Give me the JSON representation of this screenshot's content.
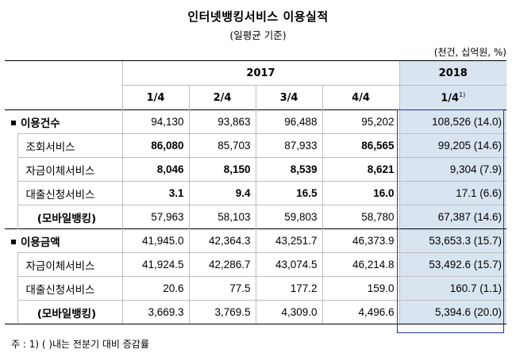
{
  "title": "인터넷뱅킹서비스  이용실적",
  "subtitle": "(일평균  기준)",
  "unit": "(천건, 십억원, %)",
  "header": {
    "year_2017": "2017",
    "year_2018": "2018",
    "quarters": [
      "1/4",
      "2/4",
      "3/4",
      "4/4",
      "1/4"
    ],
    "footnote_mark": "1)"
  },
  "rows": [
    {
      "label": "이용건수",
      "type": "cat",
      "values": [
        "94,130",
        "93,863",
        "96,488",
        "95,202",
        "108,526 (14.0)"
      ]
    },
    {
      "label": "조회서비스",
      "type": "sub",
      "values": [
        "86,080",
        "85,703",
        "87,933",
        "86,565",
        "99,205 (14.6)"
      ]
    },
    {
      "label": "자금이체서비스",
      "type": "sub",
      "values": [
        "8,046",
        "8,150",
        "8,539",
        "8,621",
        "9,304  (7.9)"
      ]
    },
    {
      "label": "대출신청서비스",
      "type": "sub",
      "values": [
        "3.1",
        "9.4",
        "16.5",
        "16.0",
        "17.1  (6.6)"
      ]
    },
    {
      "label": "(모바일뱅킹)",
      "type": "mob",
      "values": [
        "57,963",
        "58,103",
        "59,803",
        "58,780",
        "67,387 (14.6)"
      ]
    },
    {
      "label": "이용금액",
      "type": "cat",
      "values": [
        "41,945.0",
        "42,364.3",
        "43,251.7",
        "46,373.9",
        "53,653.3 (15.7)"
      ]
    },
    {
      "label": "자금이체서비스",
      "type": "sub",
      "values": [
        "41,924.5",
        "42,286.7",
        "43,074.5",
        "46,214.8",
        "53,492.6 (15.7)"
      ]
    },
    {
      "label": "대출신청서비스",
      "type": "sub",
      "values": [
        "20.6",
        "77.5",
        "177.2",
        "159.0",
        "160.7  (1.1)"
      ]
    },
    {
      "label": "(모바일뱅킹)",
      "type": "mob",
      "values": [
        "3,669.3",
        "3,769.5",
        "4,309.0",
        "4,496.6",
        "5,394.6 (20.0)"
      ]
    }
  ],
  "footnote": "주 : 1) (   )내는 전분기 대비 증감률"
}
